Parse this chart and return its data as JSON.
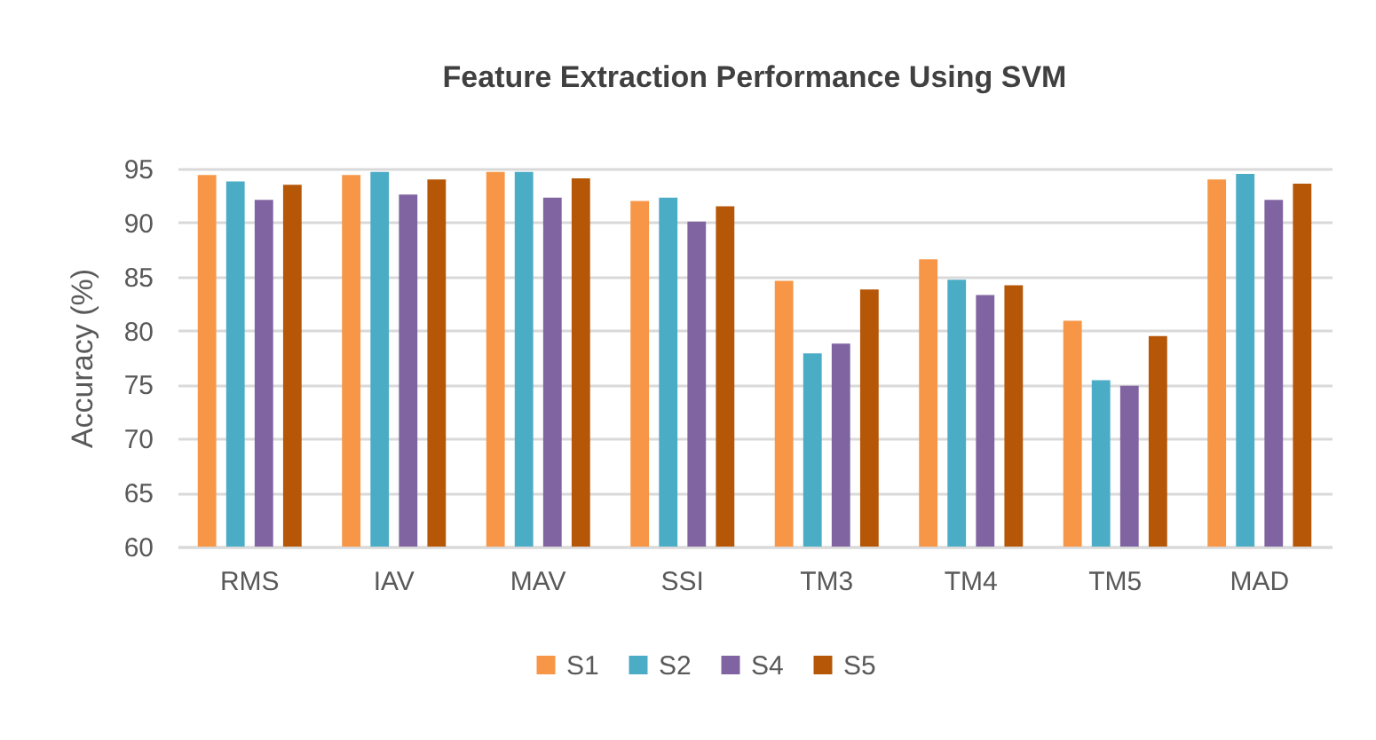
{
  "chart_data": {
    "type": "bar",
    "title": "Feature Extraction Performance Using SVM",
    "ylabel": "Accuracy (%)",
    "categories": [
      "RMS",
      "IAV",
      "MAV",
      "SSI",
      "TM3",
      "TM4",
      "TM5",
      "MAD"
    ],
    "series": [
      {
        "name": "S1",
        "color": "#f79646",
        "values": [
          94.4,
          94.4,
          94.7,
          92.0,
          84.6,
          86.6,
          80.9,
          94.0
        ]
      },
      {
        "name": "S2",
        "color": "#4bacc6",
        "values": [
          93.8,
          94.7,
          94.7,
          92.3,
          77.9,
          84.7,
          75.4,
          94.5
        ]
      },
      {
        "name": "S4",
        "color": "#8064a2",
        "values": [
          92.1,
          92.6,
          92.3,
          90.1,
          78.8,
          83.3,
          74.9,
          92.1
        ]
      },
      {
        "name": "S5",
        "color": "#b65708",
        "values": [
          93.5,
          94.0,
          94.1,
          91.5,
          83.8,
          84.2,
          79.5,
          93.6
        ]
      }
    ],
    "ylim": [
      60,
      95
    ],
    "yticks": [
      60,
      65,
      70,
      75,
      80,
      85,
      90,
      95
    ],
    "grid": "y",
    "legend": "bottom"
  }
}
